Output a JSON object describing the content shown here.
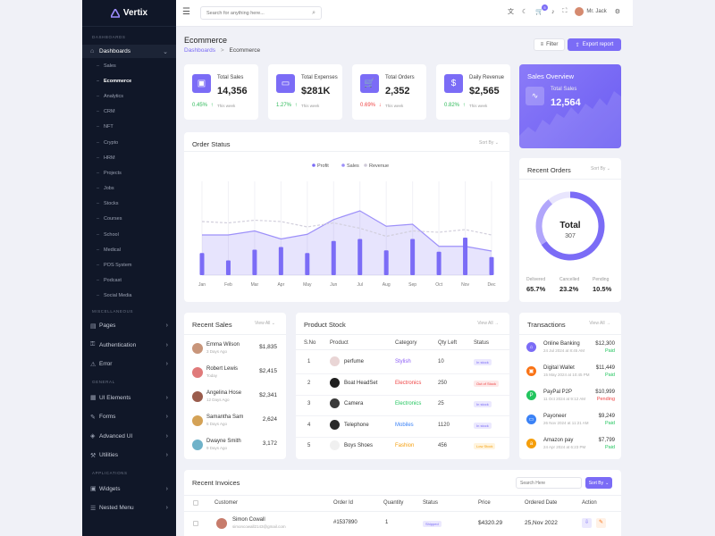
{
  "brand": {
    "name": "Vertix"
  },
  "sidebar": {
    "sections": {
      "dashboards": "DASHBOARDS",
      "misc": "MISCELLANEOUS",
      "general": "GENERAL",
      "applications": "APPLICATIONS"
    },
    "dashboards_label": "Dashboards",
    "sub_items": [
      "Sales",
      "Ecommerce",
      "Analytics",
      "CRM",
      "NFT",
      "Crypto",
      "HRM",
      "Projects",
      "Jobs",
      "Stocks",
      "Courses",
      "School",
      "Medical",
      "POS System",
      "Podcast",
      "Social Media"
    ],
    "misc_items": [
      "Pages",
      "Authentication",
      "Error"
    ],
    "general_items": [
      "UI Elements",
      "Forms",
      "Advanced UI",
      "Utilities"
    ],
    "app_items": [
      "Widgets",
      "Nested Menu"
    ]
  },
  "topbar": {
    "search_placeholder": "Search for anything here...",
    "cart_count": "5",
    "user_name": "Mr. Jack"
  },
  "page": {
    "title": "Ecommerce",
    "crumb_root": "Dashboards",
    "crumb_sep": ">",
    "crumb_current": "Ecommerce",
    "filter_label": "Filter",
    "export_label": "Export report"
  },
  "stats": [
    {
      "label": "Total Sales",
      "value": "14,356",
      "change": "0.45%",
      "note": "This week"
    },
    {
      "label": "Total Expenses",
      "value": "$281K",
      "change": "1.27%",
      "note": "This week"
    },
    {
      "label": "Total Orders",
      "value": "2,352",
      "change": "0.69%",
      "note": "This week"
    },
    {
      "label": "Daily Revenue",
      "value": "$2,565",
      "change": "0.82%",
      "note": "This week"
    }
  ],
  "sales_overview": {
    "title": "Sales Overview",
    "label": "Total Sales",
    "value": "12,564"
  },
  "order_status": {
    "title": "Order Status",
    "sort": "Sort By"
  },
  "chart_data": {
    "type": "bar",
    "title": "Order Status",
    "categories": [
      "Jan",
      "Feb",
      "Mar",
      "Apr",
      "May",
      "Jun",
      "Jul",
      "Aug",
      "Sep",
      "Oct",
      "Nov",
      "Dec"
    ],
    "series": [
      {
        "name": "Profit",
        "type": "bar",
        "values": [
          33,
          22,
          38,
          42,
          33,
          51,
          54,
          37,
          54,
          35,
          56,
          27
        ]
      },
      {
        "name": "Sales",
        "type": "area",
        "values": [
          60,
          60,
          66,
          54,
          61,
          83,
          96,
          73,
          76,
          43,
          43,
          36
        ]
      },
      {
        "name": "Revenue",
        "type": "line",
        "values": [
          80,
          78,
          82,
          80,
          72,
          78,
          70,
          58,
          66,
          64,
          68,
          60
        ]
      }
    ],
    "ylim": [
      0,
      140
    ],
    "legend": "top-center"
  },
  "recent_orders": {
    "title": "Recent Orders",
    "sort": "Sort By",
    "total_label": "Total",
    "total_value": "307",
    "stats": [
      {
        "label": "Delivered",
        "value": "65.7%"
      },
      {
        "label": "Cancelled",
        "value": "23.2%"
      },
      {
        "label": "Pending",
        "value": "10.5%"
      }
    ]
  },
  "recent_sales": {
    "title": "Recent Sales",
    "view_all": "View All",
    "rows": [
      {
        "name": "Emma Wilson",
        "date": "3 Days Ago",
        "amount": "$1,835"
      },
      {
        "name": "Robert Lewis",
        "date": "Today",
        "amount": "$2,415"
      },
      {
        "name": "Angelina Hose",
        "date": "12 Days Ago",
        "amount": "$2,341"
      },
      {
        "name": "Samantha Sam",
        "date": "5 Days Ago",
        "amount": "2,624"
      },
      {
        "name": "Dwayne Smith",
        "date": "9 Days Ago",
        "amount": "3,172"
      }
    ]
  },
  "product_stock": {
    "title": "Product Stock",
    "view_all": "View All",
    "headers": [
      "S.No",
      "Product",
      "Category",
      "Qty Left",
      "Status"
    ],
    "rows": [
      {
        "no": "1",
        "product": "perfume",
        "category": "Stylish",
        "qty": "10",
        "status": "In stock"
      },
      {
        "no": "2",
        "product": "Boat HeadSet",
        "category": "Electronics",
        "qty": "250",
        "status": "Out of Stock"
      },
      {
        "no": "3",
        "product": "Camera",
        "category": "Electronics",
        "qty": "25",
        "status": "In stock"
      },
      {
        "no": "4",
        "product": "Telephone",
        "category": "Mobiles",
        "qty": "1120",
        "status": "In stock"
      },
      {
        "no": "5",
        "product": "Boys Shoes",
        "category": "Fashion",
        "qty": "456",
        "status": "Low Stock"
      }
    ]
  },
  "transactions": {
    "title": "Transactions",
    "view_all": "View All",
    "rows": [
      {
        "name": "Online Banking",
        "date": "24 Jul 2024 at 8:45 AM",
        "amount": "$12,300",
        "status": "Paid"
      },
      {
        "name": "Digital Wallet",
        "date": "15 May 2024 at 10:45 PM",
        "amount": "$11,449",
        "status": "Paid"
      },
      {
        "name": "PayPal P2P",
        "date": "11 Oct 2024 at 9:12 AM",
        "amount": "$10,999",
        "status": "Pending"
      },
      {
        "name": "Payoneer",
        "date": "26 Nov 2024 at 11:21 AM",
        "amount": "$9,249",
        "status": "Paid"
      },
      {
        "name": "Amazon pay",
        "date": "24 Apr 2024 at 6:23 PM",
        "amount": "$7,799",
        "status": "Paid"
      }
    ]
  },
  "invoices": {
    "title": "Recent Invoices",
    "search_placeholder": "Search Here",
    "sort": "Sort By",
    "headers": [
      "Customer",
      "Order Id",
      "Quantity",
      "Status",
      "Price",
      "Ordered Date",
      "Action"
    ],
    "rows": [
      {
        "customer": "Simon Cowall",
        "email": "simoncowall2143@gmail.com",
        "order_id": "#1537890",
        "quantity": "1",
        "status": "Shipped",
        "price": "$4320.29",
        "date": "25,Nov 2022"
      }
    ]
  }
}
